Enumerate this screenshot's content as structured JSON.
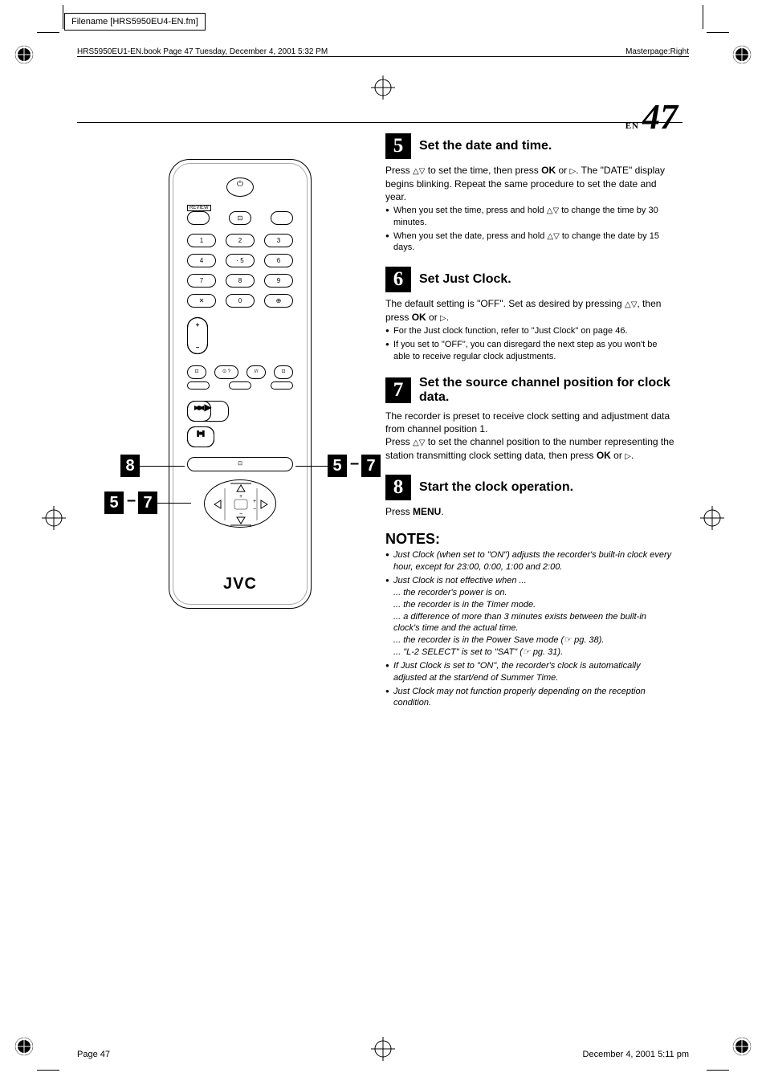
{
  "meta": {
    "filename_label": "Filename [HRS5950EU4-EN.fm]",
    "book_header": "HRS5950EU1-EN.book  Page 47  Tuesday, December 4, 2001  5:32 PM",
    "masterpage": "Masterpage:Right",
    "footer_page": "Page 47",
    "footer_date": "December 4, 2001 5:11 pm",
    "corner_lang": "EN",
    "corner_page": "47"
  },
  "remote": {
    "logo": "JVC",
    "review_label": "REVIEW",
    "keypad_rows": [
      [
        "1",
        "2",
        "3"
      ],
      [
        "4",
        "· 5",
        "6"
      ],
      [
        "7",
        "8",
        "9"
      ],
      [
        "✕",
        "0",
        "⊕"
      ]
    ],
    "callouts": {
      "left_8": "8",
      "left_5": "5",
      "left_7": "7",
      "right_5": "5",
      "right_7": "7",
      "dash": "–"
    }
  },
  "steps": [
    {
      "num": "5",
      "title": "Set the date and time.",
      "body_html": "Press <span class='tri'>△▽</span> to set the time, then press <b>OK</b> or <span class='tri'>▷</span>. The \"DATE\" display begins blinking. Repeat the same procedure to set the date and year.",
      "bullets": [
        "When you set the time, press and hold <span class='tri'>△▽</span> to change the time by 30 minutes.",
        "When you set the date, press and hold <span class='tri'>△▽</span> to change the date by 15 days."
      ]
    },
    {
      "num": "6",
      "title": "Set Just Clock.",
      "body_html": "The default setting is \"OFF\". Set as desired by pressing <span class='tri'>△▽</span>, then press <b>OK</b> or <span class='tri'>▷</span>.",
      "bullets": [
        "For the Just clock function, refer to \"Just Clock\" on page 46.",
        "If you set to \"OFF\", you can disregard the next step as you won't be able to receive regular clock adjustments."
      ]
    },
    {
      "num": "7",
      "title": "Set the source channel position for clock data.",
      "body_html": "The recorder is preset to receive clock setting and adjustment data from channel position 1.<br>Press <span class='tri'>△▽</span> to set the channel position to the number representing the station transmitting clock setting data, then press <b>OK</b> or <span class='tri'>▷</span>.",
      "bullets": []
    },
    {
      "num": "8",
      "title": "Start the clock operation.",
      "body_html": "Press <b>MENU</b>.",
      "bullets": []
    }
  ],
  "notes": {
    "heading": "NOTES:",
    "items": [
      "Just Clock (when set to \"ON\") adjusts the recorder's built-in clock every hour, except for 23:00, 0:00, 1:00 and 2:00.",
      "Just Clock is not effective when ...<br>... the recorder's power is on.<br>... the recorder is in the Timer mode.<br>... a difference of more than 3 minutes exists between the built-in clock's time and the actual time.<br>... the recorder is in the Power Save mode (☞ pg. 38).<br>... \"L-2 SELECT\" is set to \"SAT\" (☞ pg. 31).",
      "If Just Clock is set to \"ON\", the recorder's clock is automatically adjusted at the start/end of Summer Time.",
      "Just Clock may not function properly depending on the reception condition."
    ]
  },
  "colors": {
    "text": "#000000",
    "bg": "#ffffff"
  }
}
